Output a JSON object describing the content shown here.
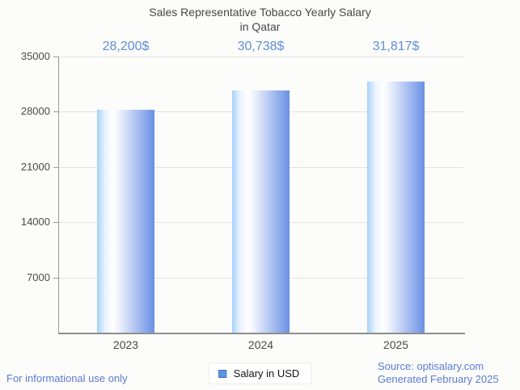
{
  "title": {
    "line1": "Sales Representative Tobacco Yearly Salary",
    "line2": "in Qatar"
  },
  "chart_data": {
    "type": "bar",
    "title": "Sales Representative Tobacco Yearly Salary in Qatar",
    "categories": [
      "2023",
      "2024",
      "2025"
    ],
    "values": [
      28200,
      30738,
      31817
    ],
    "value_labels": [
      "28,200$",
      "30,738$",
      "31,817$"
    ],
    "series_name": "Salary in USD",
    "xlabel": "",
    "ylabel": "",
    "ylim": [
      0,
      35000
    ],
    "yticks": [
      35000,
      28000,
      21000,
      14000,
      7000
    ],
    "grid": true,
    "legend_position": "bottom-center",
    "colors": {
      "bar_gradient_left": "#A7D1F9",
      "bar_gradient_highlight": "#FFFFFF",
      "bar_gradient_right": "#6990E5",
      "value_label": "#5E8FD9",
      "axis": "#9A9A9A",
      "gridline": "#E3E3E3",
      "tick_text": "#4A4A4A",
      "background": "#FCFCFA"
    }
  },
  "legend": {
    "label": "Salary in USD",
    "swatch_color": "#5E97E0"
  },
  "footer": {
    "left": "For informational use only",
    "source": "Source: optisalary.com",
    "generated": "Generated February 2025"
  }
}
